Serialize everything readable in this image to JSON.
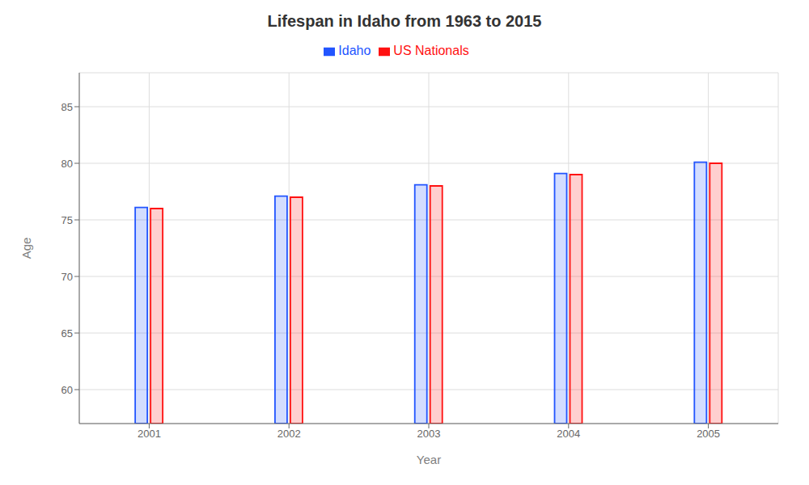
{
  "chart_data": {
    "type": "bar",
    "title": "Lifespan in Idaho from 1963 to 2015",
    "xlabel": "Year",
    "ylabel": "Age",
    "categories": [
      "2001",
      "2002",
      "2003",
      "2004",
      "2005"
    ],
    "series": [
      {
        "name": "Idaho",
        "color": "#2255FF",
        "values": [
          76.1,
          77.1,
          78.1,
          79.1,
          80.1
        ]
      },
      {
        "name": "US Nationals",
        "color": "#FF1111",
        "values": [
          76.0,
          77.0,
          78.0,
          79.0,
          80.0
        ]
      }
    ],
    "ylim": [
      57,
      88
    ],
    "yticks": [
      60,
      65,
      70,
      75,
      80,
      85
    ],
    "grid": true,
    "legend": "top"
  }
}
